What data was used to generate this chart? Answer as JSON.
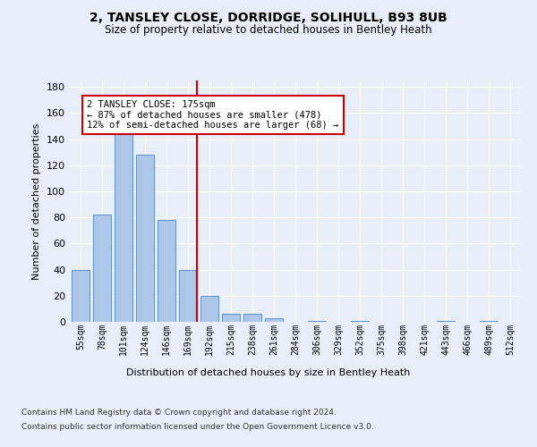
{
  "title1": "2, TANSLEY CLOSE, DORRIDGE, SOLIHULL, B93 8UB",
  "title2": "Size of property relative to detached houses in Bentley Heath",
  "xlabel": "Distribution of detached houses by size in Bentley Heath",
  "ylabel": "Number of detached properties",
  "categories": [
    "55sqm",
    "78sqm",
    "101sqm",
    "124sqm",
    "146sqm",
    "169sqm",
    "192sqm",
    "215sqm",
    "238sqm",
    "261sqm",
    "284sqm",
    "306sqm",
    "329sqm",
    "352sqm",
    "375sqm",
    "398sqm",
    "421sqm",
    "443sqm",
    "466sqm",
    "489sqm",
    "512sqm"
  ],
  "values": [
    40,
    82,
    144,
    128,
    78,
    40,
    20,
    6,
    6,
    3,
    0,
    1,
    0,
    1,
    0,
    0,
    0,
    1,
    0,
    1,
    0
  ],
  "bar_color": "#aec6e8",
  "bar_edge_color": "#5b8fc9",
  "vline_x": 5.4,
  "vline_color": "#cc0000",
  "annotation_text": "2 TANSLEY CLOSE: 175sqm\n← 87% of detached houses are smaller (478)\n12% of semi-detached houses are larger (68) →",
  "annotation_box_color": "#cc0000",
  "ylim": [
    0,
    185
  ],
  "yticks": [
    0,
    20,
    40,
    60,
    80,
    100,
    120,
    140,
    160,
    180
  ],
  "footer1": "Contains HM Land Registry data © Crown copyright and database right 2024.",
  "footer2": "Contains public sector information licensed under the Open Government Licence v3.0.",
  "bg_color": "#e8eef7",
  "plot_bg_color": "#e8eef7"
}
